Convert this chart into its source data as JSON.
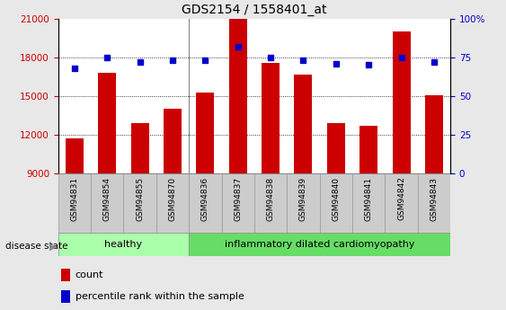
{
  "title": "GDS2154 / 1558401_at",
  "samples": [
    "GSM94831",
    "GSM94854",
    "GSM94855",
    "GSM94870",
    "GSM94836",
    "GSM94837",
    "GSM94838",
    "GSM94839",
    "GSM94840",
    "GSM94841",
    "GSM94842",
    "GSM94843"
  ],
  "counts": [
    11700,
    16800,
    12900,
    14000,
    15300,
    21000,
    17600,
    16700,
    12900,
    12700,
    20000,
    15100
  ],
  "percentiles": [
    68,
    75,
    72,
    73,
    73,
    82,
    75,
    73,
    71,
    70,
    75,
    72
  ],
  "healthy_count": 4,
  "bar_color": "#cc0000",
  "dot_color": "#0000cc",
  "healthy_bg": "#aaffaa",
  "idcm_bg": "#66dd66",
  "label_bg": "#d0d0d0",
  "ylim_left": [
    9000,
    21000
  ],
  "ylim_right": [
    0,
    100
  ],
  "yticks_left": [
    9000,
    12000,
    15000,
    18000,
    21000
  ],
  "yticks_right": [
    0,
    25,
    50,
    75,
    100
  ],
  "ytick_labels_right": [
    "0",
    "25",
    "50",
    "75",
    "100%"
  ],
  "grid_values": [
    12000,
    15000,
    18000
  ],
  "bar_width": 0.55,
  "fig_bg": "#e8e8e8",
  "plot_bg": "#ffffff"
}
